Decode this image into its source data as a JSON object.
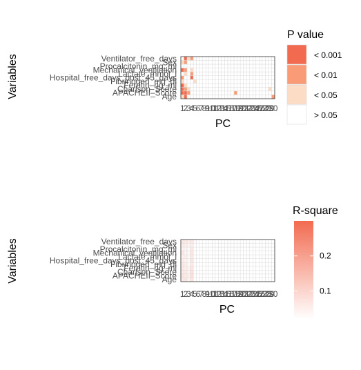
{
  "chart_data": [
    {
      "type": "heatmap",
      "xlabel": "PC",
      "ylabel": "Variables",
      "x_categories": [
        "1",
        "2",
        "3",
        "4",
        "5",
        "6",
        "7",
        "8",
        "9",
        "10",
        "11",
        "12",
        "13",
        "14",
        "15",
        "16",
        "17",
        "18",
        "19",
        "20",
        "21",
        "22",
        "23",
        "24",
        "25",
        "26",
        "27",
        "28",
        "29",
        "30"
      ],
      "y_categories": [
        "Ventilator_free_days",
        "Sex",
        "Procalcitonin_mg_ml",
        "Mechanical_ventilation",
        "Lactate_mmol_l",
        "Hospital_free_days_post_45_days",
        "Fibrinogen_mg_dl",
        "Ferritin_ng_ml",
        "Charlson_Score",
        "APACHEII_Score",
        "Age"
      ],
      "legend": {
        "title": "P value",
        "categories": [
          {
            "label": "< 0.001",
            "color": "#F26B50"
          },
          {
            "label": "< 0.01",
            "color": "#F89B76"
          },
          {
            "label": "< 0.05",
            "color": "#FDDCC5"
          },
          {
            "label": "> 0.05",
            "color": "#FFFFFF"
          }
        ]
      },
      "values": [
        [
          0,
          3,
          1,
          2,
          0,
          0,
          0,
          0,
          0,
          0,
          0,
          0,
          0,
          0,
          0,
          0,
          0,
          0,
          0,
          0,
          0,
          0,
          0,
          0,
          0,
          0,
          0,
          0,
          0,
          0
        ],
        [
          1,
          2,
          0,
          0,
          0,
          0,
          0,
          0,
          0,
          0,
          0,
          0,
          0,
          0,
          0,
          0,
          0,
          0,
          0,
          0,
          0,
          0,
          0,
          0,
          0,
          0,
          0,
          0,
          0,
          0
        ],
        [
          0,
          0,
          0,
          0,
          0,
          0,
          0,
          0,
          0,
          0,
          0,
          0,
          0,
          0,
          0,
          0,
          0,
          0,
          0,
          0,
          0,
          0,
          0,
          0,
          0,
          0,
          0,
          0,
          0,
          0
        ],
        [
          3,
          2,
          0,
          1,
          0,
          0,
          0,
          0,
          0,
          0,
          0,
          0,
          0,
          0,
          0,
          0,
          0,
          0,
          0,
          0,
          0,
          0,
          0,
          0,
          0,
          0,
          0,
          0,
          0,
          0
        ],
        [
          0,
          1,
          0,
          2,
          0,
          0,
          0,
          0,
          0,
          0,
          0,
          0,
          0,
          0,
          0,
          0,
          0,
          0,
          0,
          0,
          0,
          0,
          0,
          0,
          0,
          0,
          0,
          0,
          0,
          0
        ],
        [
          2,
          0,
          0,
          3,
          0,
          0,
          0,
          0,
          0,
          0,
          0,
          0,
          0,
          0,
          0,
          0,
          0,
          0,
          0,
          0,
          0,
          0,
          0,
          0,
          0,
          0,
          0,
          0,
          0,
          0
        ],
        [
          1,
          0,
          0,
          0,
          1,
          0,
          0,
          0,
          0,
          0,
          0,
          0,
          0,
          0,
          0,
          0,
          0,
          0,
          0,
          0,
          0,
          0,
          0,
          0,
          0,
          0,
          0,
          0,
          0,
          0
        ],
        [
          3,
          1,
          0,
          0,
          0,
          0,
          0,
          0,
          0,
          0,
          0,
          0,
          0,
          0,
          0,
          0,
          0,
          0,
          0,
          0,
          0,
          0,
          0,
          0,
          0,
          0,
          0,
          0,
          0,
          0
        ],
        [
          3,
          2,
          1,
          0,
          0,
          0,
          0,
          0,
          0,
          0,
          0,
          0,
          0,
          0,
          0,
          0,
          0,
          0,
          0,
          0,
          0,
          0,
          0,
          0,
          0,
          0,
          0,
          0,
          1,
          0
        ],
        [
          3,
          3,
          2,
          0,
          0,
          0,
          0,
          0,
          0,
          0,
          0,
          0,
          0,
          0,
          0,
          0,
          0,
          2,
          0,
          0,
          0,
          0,
          0,
          0,
          0,
          0,
          0,
          0,
          0,
          0
        ],
        [
          1,
          3,
          0,
          0,
          0,
          0,
          0,
          0,
          0,
          0,
          0,
          0,
          0,
          0,
          0,
          0,
          0,
          0,
          0,
          0,
          0,
          0,
          0,
          0,
          0,
          0,
          0,
          0,
          0,
          2
        ]
      ]
    },
    {
      "type": "heatmap",
      "xlabel": "PC",
      "ylabel": "Variables",
      "x_categories": [
        "1",
        "2",
        "3",
        "4",
        "5",
        "6",
        "7",
        "8",
        "9",
        "10",
        "11",
        "12",
        "13",
        "14",
        "15",
        "16",
        "17",
        "18",
        "19",
        "20",
        "21",
        "22",
        "23",
        "24",
        "25",
        "26",
        "27",
        "28",
        "29",
        "30"
      ],
      "y_categories": [
        "Ventilator_free_days",
        "Sex",
        "Procalcitonin_mg_ml",
        "Mechanical_ventilation",
        "Lactate_mmol_l",
        "Hospital_free_days_post_45_days",
        "Fibrinogen_mg_dl",
        "Ferritin_ng_ml",
        "Charlson_Score",
        "APACHEII_Score",
        "Age"
      ],
      "legend": {
        "title": "R-square",
        "ticks": [
          0.2,
          0.1
        ],
        "range": [
          0.02,
          0.3
        ],
        "color_low": "#FFFFFF",
        "color_high": "#F26B50"
      },
      "values": [
        [
          0.06,
          0.06,
          0.05,
          0.06,
          0.03,
          0.02,
          0.02,
          0.02,
          0.02,
          0.02,
          0.02,
          0.02,
          0.02,
          0.02,
          0.02,
          0.02,
          0.02,
          0.02,
          0.02,
          0.02,
          0.02,
          0.02,
          0.02,
          0.02,
          0.02,
          0.02,
          0.02,
          0.02,
          0.02,
          0.02
        ],
        [
          0.05,
          0.05,
          0.04,
          0.05,
          0.02,
          0.02,
          0.02,
          0.02,
          0.02,
          0.02,
          0.02,
          0.02,
          0.02,
          0.02,
          0.02,
          0.02,
          0.02,
          0.02,
          0.02,
          0.02,
          0.02,
          0.02,
          0.02,
          0.02,
          0.02,
          0.02,
          0.02,
          0.02,
          0.02,
          0.02
        ],
        [
          0.04,
          0.04,
          0.03,
          0.06,
          0.02,
          0.02,
          0.02,
          0.02,
          0.02,
          0.02,
          0.02,
          0.02,
          0.02,
          0.02,
          0.02,
          0.02,
          0.02,
          0.02,
          0.02,
          0.02,
          0.02,
          0.02,
          0.02,
          0.02,
          0.02,
          0.02,
          0.02,
          0.02,
          0.02,
          0.02
        ],
        [
          0.06,
          0.04,
          0.03,
          0.07,
          0.02,
          0.02,
          0.02,
          0.02,
          0.02,
          0.02,
          0.02,
          0.02,
          0.02,
          0.02,
          0.02,
          0.02,
          0.02,
          0.02,
          0.02,
          0.02,
          0.02,
          0.02,
          0.02,
          0.02,
          0.02,
          0.02,
          0.02,
          0.02,
          0.02,
          0.02
        ],
        [
          0.04,
          0.05,
          0.03,
          0.06,
          0.02,
          0.02,
          0.02,
          0.02,
          0.02,
          0.02,
          0.02,
          0.02,
          0.02,
          0.02,
          0.02,
          0.02,
          0.02,
          0.02,
          0.02,
          0.02,
          0.02,
          0.02,
          0.02,
          0.02,
          0.02,
          0.02,
          0.02,
          0.02,
          0.02,
          0.02
        ],
        [
          0.05,
          0.04,
          0.03,
          0.07,
          0.02,
          0.02,
          0.02,
          0.02,
          0.02,
          0.02,
          0.02,
          0.02,
          0.02,
          0.02,
          0.02,
          0.02,
          0.02,
          0.02,
          0.02,
          0.02,
          0.02,
          0.02,
          0.02,
          0.02,
          0.02,
          0.02,
          0.02,
          0.02,
          0.02,
          0.02
        ],
        [
          0.06,
          0.05,
          0.03,
          0.06,
          0.02,
          0.02,
          0.02,
          0.02,
          0.02,
          0.02,
          0.02,
          0.02,
          0.02,
          0.02,
          0.02,
          0.02,
          0.02,
          0.02,
          0.02,
          0.02,
          0.02,
          0.02,
          0.02,
          0.02,
          0.02,
          0.02,
          0.02,
          0.02,
          0.02,
          0.02
        ],
        [
          0.06,
          0.05,
          0.04,
          0.07,
          0.02,
          0.02,
          0.02,
          0.02,
          0.02,
          0.02,
          0.02,
          0.02,
          0.02,
          0.02,
          0.02,
          0.02,
          0.02,
          0.02,
          0.02,
          0.02,
          0.02,
          0.02,
          0.02,
          0.02,
          0.02,
          0.02,
          0.02,
          0.02,
          0.02,
          0.02
        ],
        [
          0.06,
          0.06,
          0.04,
          0.08,
          0.02,
          0.02,
          0.02,
          0.02,
          0.02,
          0.02,
          0.02,
          0.02,
          0.02,
          0.02,
          0.02,
          0.02,
          0.02,
          0.02,
          0.02,
          0.02,
          0.02,
          0.02,
          0.02,
          0.02,
          0.02,
          0.02,
          0.02,
          0.02,
          0.02,
          0.02
        ],
        [
          0.07,
          0.06,
          0.05,
          0.08,
          0.02,
          0.02,
          0.02,
          0.02,
          0.02,
          0.02,
          0.02,
          0.02,
          0.02,
          0.02,
          0.02,
          0.02,
          0.02,
          0.02,
          0.02,
          0.02,
          0.02,
          0.02,
          0.02,
          0.02,
          0.02,
          0.02,
          0.02,
          0.02,
          0.02,
          0.02
        ],
        [
          0.06,
          0.07,
          0.04,
          0.07,
          0.02,
          0.02,
          0.02,
          0.02,
          0.02,
          0.02,
          0.02,
          0.02,
          0.02,
          0.02,
          0.02,
          0.02,
          0.02,
          0.02,
          0.02,
          0.02,
          0.02,
          0.02,
          0.02,
          0.02,
          0.02,
          0.02,
          0.02,
          0.02,
          0.02,
          0.02
        ]
      ]
    }
  ]
}
